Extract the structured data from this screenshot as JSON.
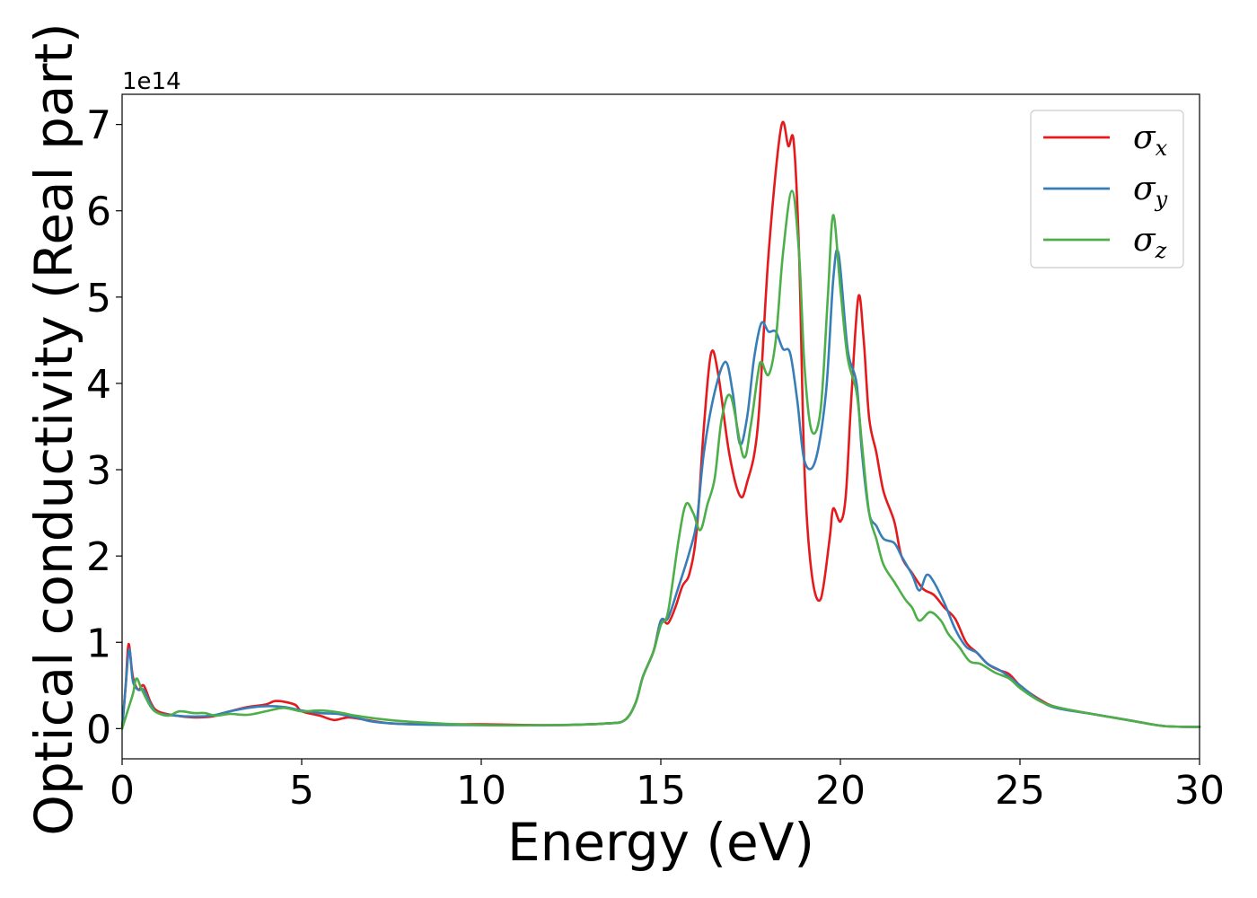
{
  "chart_data": {
    "type": "line",
    "xlabel": "Energy (eV)",
    "ylabel": "Optical conductivity (Real part)",
    "y_offset_label": "1e14",
    "y_scale": 100000000000000.0,
    "xlim": [
      0,
      30
    ],
    "ylim": [
      -0.35,
      7.35
    ],
    "x_ticks": [
      0,
      5,
      10,
      15,
      20,
      25,
      30
    ],
    "y_ticks": [
      0,
      1,
      2,
      3,
      4,
      5,
      6,
      7
    ],
    "grid": false,
    "legend_position": "top-right",
    "series": [
      {
        "name": "σx",
        "legend_main": "σ",
        "legend_sub": "x",
        "color": "#e41a1c",
        "points": [
          [
            0,
            0
          ],
          [
            0.1,
            0.5
          ],
          [
            0.18,
            0.98
          ],
          [
            0.3,
            0.6
          ],
          [
            0.45,
            0.45
          ],
          [
            0.6,
            0.5
          ],
          [
            0.8,
            0.3
          ],
          [
            1.0,
            0.2
          ],
          [
            1.5,
            0.15
          ],
          [
            2.0,
            0.13
          ],
          [
            2.5,
            0.14
          ],
          [
            3.0,
            0.2
          ],
          [
            3.5,
            0.25
          ],
          [
            4.0,
            0.28
          ],
          [
            4.3,
            0.32
          ],
          [
            4.8,
            0.28
          ],
          [
            5.0,
            0.2
          ],
          [
            5.5,
            0.15
          ],
          [
            5.9,
            0.1
          ],
          [
            6.3,
            0.13
          ],
          [
            6.8,
            0.1
          ],
          [
            7.5,
            0.06
          ],
          [
            8.5,
            0.05
          ],
          [
            10,
            0.05
          ],
          [
            12,
            0.04
          ],
          [
            13.5,
            0.06
          ],
          [
            14.0,
            0.1
          ],
          [
            14.3,
            0.3
          ],
          [
            14.5,
            0.6
          ],
          [
            14.8,
            0.9
          ],
          [
            15.0,
            1.25
          ],
          [
            15.2,
            1.22
          ],
          [
            15.4,
            1.4
          ],
          [
            15.6,
            1.65
          ],
          [
            15.8,
            1.8
          ],
          [
            16.0,
            2.3
          ],
          [
            16.2,
            3.5
          ],
          [
            16.4,
            4.35
          ],
          [
            16.6,
            4.1
          ],
          [
            16.9,
            3.2
          ],
          [
            17.2,
            2.7
          ],
          [
            17.4,
            2.85
          ],
          [
            17.7,
            3.5
          ],
          [
            18.0,
            5.5
          ],
          [
            18.35,
            6.97
          ],
          [
            18.55,
            6.75
          ],
          [
            18.7,
            6.8
          ],
          [
            18.85,
            5.5
          ],
          [
            19.0,
            3.0
          ],
          [
            19.2,
            1.8
          ],
          [
            19.45,
            1.5
          ],
          [
            19.7,
            2.2
          ],
          [
            19.8,
            2.55
          ],
          [
            20.0,
            2.4
          ],
          [
            20.15,
            2.7
          ],
          [
            20.3,
            3.8
          ],
          [
            20.5,
            5.0
          ],
          [
            20.65,
            4.5
          ],
          [
            20.8,
            3.6
          ],
          [
            21.0,
            3.2
          ],
          [
            21.2,
            2.75
          ],
          [
            21.5,
            2.4
          ],
          [
            21.7,
            2.0
          ],
          [
            22.0,
            1.8
          ],
          [
            22.3,
            1.62
          ],
          [
            22.6,
            1.55
          ],
          [
            22.9,
            1.4
          ],
          [
            23.2,
            1.27
          ],
          [
            23.5,
            1.0
          ],
          [
            23.8,
            0.88
          ],
          [
            24.1,
            0.75
          ],
          [
            24.4,
            0.68
          ],
          [
            24.7,
            0.63
          ],
          [
            25.0,
            0.5
          ],
          [
            25.5,
            0.35
          ],
          [
            26.0,
            0.25
          ],
          [
            27.0,
            0.17
          ],
          [
            28.0,
            0.1
          ],
          [
            29.0,
            0.03
          ],
          [
            30.0,
            0.02
          ]
        ]
      },
      {
        "name": "σy",
        "legend_main": "σ",
        "legend_sub": "y",
        "color": "#377eb8",
        "points": [
          [
            0,
            0
          ],
          [
            0.1,
            0.5
          ],
          [
            0.2,
            0.92
          ],
          [
            0.3,
            0.55
          ],
          [
            0.45,
            0.45
          ],
          [
            0.6,
            0.45
          ],
          [
            0.8,
            0.28
          ],
          [
            1.0,
            0.18
          ],
          [
            1.5,
            0.15
          ],
          [
            2.0,
            0.14
          ],
          [
            2.5,
            0.15
          ],
          [
            3.0,
            0.2
          ],
          [
            3.5,
            0.24
          ],
          [
            4.0,
            0.26
          ],
          [
            4.5,
            0.25
          ],
          [
            5.0,
            0.21
          ],
          [
            5.5,
            0.18
          ],
          [
            6.0,
            0.17
          ],
          [
            6.5,
            0.13
          ],
          [
            7.0,
            0.08
          ],
          [
            8.0,
            0.05
          ],
          [
            10,
            0.04
          ],
          [
            12,
            0.04
          ],
          [
            13.5,
            0.06
          ],
          [
            14.0,
            0.1
          ],
          [
            14.3,
            0.3
          ],
          [
            14.5,
            0.6
          ],
          [
            14.8,
            0.9
          ],
          [
            15.0,
            1.25
          ],
          [
            15.2,
            1.28
          ],
          [
            15.5,
            1.65
          ],
          [
            15.8,
            2.05
          ],
          [
            16.0,
            2.4
          ],
          [
            16.2,
            3.2
          ],
          [
            16.5,
            3.9
          ],
          [
            16.8,
            4.25
          ],
          [
            17.0,
            3.9
          ],
          [
            17.2,
            3.3
          ],
          [
            17.4,
            3.6
          ],
          [
            17.6,
            4.3
          ],
          [
            17.8,
            4.7
          ],
          [
            18.0,
            4.6
          ],
          [
            18.2,
            4.6
          ],
          [
            18.4,
            4.4
          ],
          [
            18.6,
            4.35
          ],
          [
            18.8,
            3.8
          ],
          [
            19.0,
            3.1
          ],
          [
            19.3,
            3.1
          ],
          [
            19.6,
            3.9
          ],
          [
            19.8,
            5.2
          ],
          [
            19.95,
            5.5
          ],
          [
            20.2,
            4.4
          ],
          [
            20.45,
            4.0
          ],
          [
            20.6,
            3.2
          ],
          [
            20.8,
            2.5
          ],
          [
            21.0,
            2.35
          ],
          [
            21.2,
            2.2
          ],
          [
            21.5,
            2.15
          ],
          [
            21.7,
            2.0
          ],
          [
            22.0,
            1.78
          ],
          [
            22.2,
            1.6
          ],
          [
            22.4,
            1.78
          ],
          [
            22.6,
            1.7
          ],
          [
            22.9,
            1.45
          ],
          [
            23.2,
            1.15
          ],
          [
            23.5,
            0.95
          ],
          [
            23.8,
            0.88
          ],
          [
            24.1,
            0.75
          ],
          [
            24.5,
            0.66
          ],
          [
            25.0,
            0.5
          ],
          [
            25.5,
            0.34
          ],
          [
            26.0,
            0.24
          ],
          [
            27.0,
            0.17
          ],
          [
            28.0,
            0.1
          ],
          [
            29.0,
            0.03
          ],
          [
            30.0,
            0.02
          ]
        ]
      },
      {
        "name": "σz",
        "legend_main": "σ",
        "legend_sub": "z",
        "color": "#4daf4a",
        "points": [
          [
            0,
            0
          ],
          [
            0.15,
            0.2
          ],
          [
            0.3,
            0.4
          ],
          [
            0.4,
            0.58
          ],
          [
            0.55,
            0.45
          ],
          [
            0.8,
            0.25
          ],
          [
            1.0,
            0.18
          ],
          [
            1.3,
            0.15
          ],
          [
            1.6,
            0.2
          ],
          [
            2.0,
            0.18
          ],
          [
            2.3,
            0.18
          ],
          [
            2.6,
            0.15
          ],
          [
            3.0,
            0.17
          ],
          [
            3.5,
            0.16
          ],
          [
            4.0,
            0.2
          ],
          [
            4.5,
            0.24
          ],
          [
            5.0,
            0.2
          ],
          [
            5.5,
            0.21
          ],
          [
            6.0,
            0.19
          ],
          [
            6.5,
            0.15
          ],
          [
            7.0,
            0.12
          ],
          [
            8.0,
            0.08
          ],
          [
            10,
            0.04
          ],
          [
            12,
            0.04
          ],
          [
            13.5,
            0.06
          ],
          [
            14.0,
            0.1
          ],
          [
            14.3,
            0.3
          ],
          [
            14.5,
            0.6
          ],
          [
            14.8,
            0.9
          ],
          [
            15.0,
            1.2
          ],
          [
            15.2,
            1.35
          ],
          [
            15.5,
            2.2
          ],
          [
            15.7,
            2.6
          ],
          [
            15.9,
            2.5
          ],
          [
            16.1,
            2.3
          ],
          [
            16.3,
            2.6
          ],
          [
            16.5,
            2.9
          ],
          [
            16.7,
            3.6
          ],
          [
            16.95,
            3.85
          ],
          [
            17.3,
            3.15
          ],
          [
            17.5,
            3.5
          ],
          [
            17.7,
            4.1
          ],
          [
            17.8,
            4.25
          ],
          [
            18.0,
            4.1
          ],
          [
            18.2,
            4.5
          ],
          [
            18.4,
            5.5
          ],
          [
            18.65,
            6.23
          ],
          [
            18.85,
            5.5
          ],
          [
            19.0,
            4.2
          ],
          [
            19.2,
            3.45
          ],
          [
            19.45,
            3.7
          ],
          [
            19.65,
            5.0
          ],
          [
            19.8,
            5.95
          ],
          [
            20.0,
            5.1
          ],
          [
            20.2,
            4.3
          ],
          [
            20.45,
            3.9
          ],
          [
            20.6,
            3.3
          ],
          [
            20.8,
            2.5
          ],
          [
            21.0,
            2.2
          ],
          [
            21.2,
            1.9
          ],
          [
            21.5,
            1.7
          ],
          [
            21.8,
            1.5
          ],
          [
            22.0,
            1.4
          ],
          [
            22.2,
            1.25
          ],
          [
            22.5,
            1.35
          ],
          [
            22.8,
            1.25
          ],
          [
            23.0,
            1.1
          ],
          [
            23.3,
            0.95
          ],
          [
            23.6,
            0.78
          ],
          [
            23.9,
            0.75
          ],
          [
            24.3,
            0.65
          ],
          [
            24.7,
            0.58
          ],
          [
            25.0,
            0.47
          ],
          [
            25.5,
            0.33
          ],
          [
            26.0,
            0.25
          ],
          [
            27.0,
            0.17
          ],
          [
            28.0,
            0.1
          ],
          [
            29.0,
            0.03
          ],
          [
            30.0,
            0.02
          ]
        ]
      }
    ]
  }
}
